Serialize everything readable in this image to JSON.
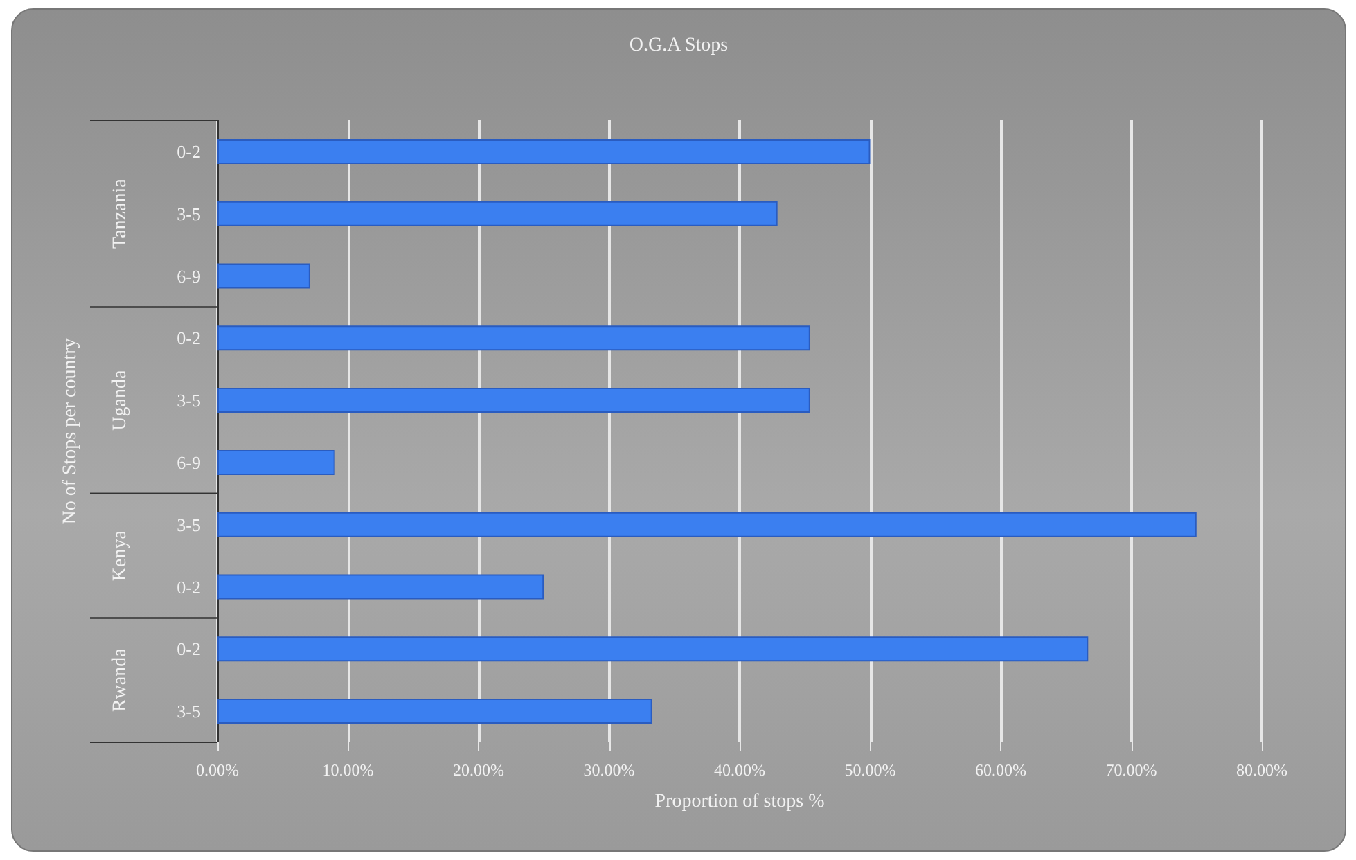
{
  "chart_data": {
    "type": "bar",
    "orientation": "horizontal",
    "stacked": true,
    "title": "O.G.A Stops",
    "xlabel": "Proportion of stops %",
    "ylabel": "No of Stops per country",
    "categories": [
      "0-2",
      "3-5",
      "6-9",
      "0-2",
      "3-5",
      "6-9",
      "3-5",
      "0-2",
      "0-2",
      "3-5"
    ],
    "series": [
      {
        "color": "#3b7ff0",
        "values": [
          50,
          42.9,
          7.1,
          null,
          null,
          null,
          null,
          null,
          null,
          null
        ]
      },
      {
        "color": "#3b7ff0",
        "values": [
          null,
          null,
          null,
          45.4,
          45.4,
          9,
          null,
          null,
          null,
          null
        ]
      },
      {
        "color": "#3b7ff0",
        "values": [
          null,
          null,
          null,
          null,
          null,
          null,
          75,
          25,
          null,
          null
        ]
      },
      {
        "color": "#3b7ff0",
        "values": [
          null,
          null,
          null,
          null,
          null,
          null,
          null,
          null,
          66.7,
          33.3
        ]
      }
    ],
    "xlim": [
      0,
      80
    ],
    "xticks": [
      {
        "value": 0,
        "label": "0.00%"
      },
      {
        "value": 10,
        "label": "10.00%"
      },
      {
        "value": 20,
        "label": "20.00%"
      },
      {
        "value": 30,
        "label": "30.00%"
      },
      {
        "value": 40,
        "label": "40.00%"
      },
      {
        "value": 50,
        "label": "50.00%"
      },
      {
        "value": 60,
        "label": "60.00%"
      },
      {
        "value": 70,
        "label": "70.00%"
      },
      {
        "value": 80,
        "label": "80.00%"
      }
    ],
    "annotations": [
      "Tanzania",
      "Uganda",
      "Kenya",
      "Rwanda"
    ],
    "grid": "x"
  }
}
